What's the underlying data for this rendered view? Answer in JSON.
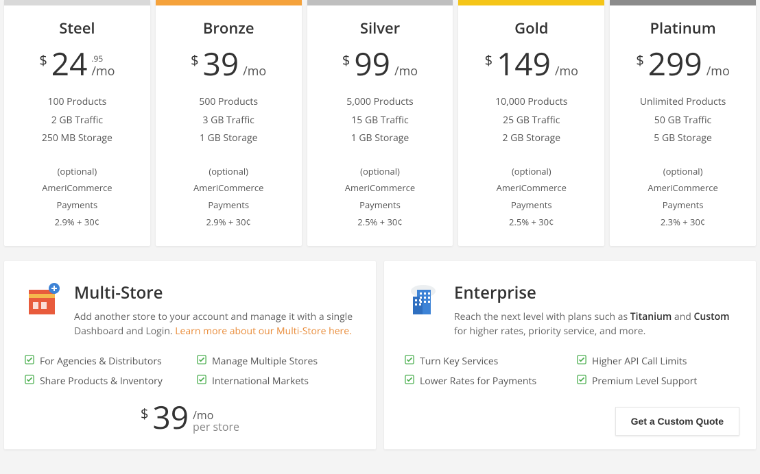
{
  "plans": [
    {
      "bar": "#d9d9d9",
      "name": "Steel",
      "currency": "$",
      "amount": "24",
      "cents": ".95",
      "per": "/mo",
      "features": [
        "100 Products",
        "2 GB Traffic",
        "250 MB Storage"
      ],
      "extra": [
        "(optional)",
        "AmeriCommerce",
        "Payments",
        "2.9% + 30¢"
      ]
    },
    {
      "bar": "#f5a23b",
      "name": "Bronze",
      "currency": "$",
      "amount": "39",
      "cents": "",
      "per": "/mo",
      "features": [
        "500 Products",
        "3 GB Traffic",
        "1 GB Storage"
      ],
      "extra": [
        "(optional)",
        "AmeriCommerce",
        "Payments",
        "2.9% + 30¢"
      ]
    },
    {
      "bar": "#bfbfbf",
      "name": "Silver",
      "currency": "$",
      "amount": "99",
      "cents": "",
      "per": "/mo",
      "features": [
        "5,000 Products",
        "15 GB Traffic",
        "1 GB Storage"
      ],
      "extra": [
        "(optional)",
        "AmeriCommerce",
        "Payments",
        "2.5% + 30¢"
      ]
    },
    {
      "bar": "#f5c518",
      "name": "Gold",
      "currency": "$",
      "amount": "149",
      "cents": "",
      "per": "/mo",
      "features": [
        "10,000 Products",
        "25 GB Traffic",
        "2 GB Storage"
      ],
      "extra": [
        "(optional)",
        "AmeriCommerce",
        "Payments",
        "2.5% + 30¢"
      ]
    },
    {
      "bar": "#8c8c8c",
      "name": "Platinum",
      "currency": "$",
      "amount": "299",
      "cents": "",
      "per": "/mo",
      "features": [
        "Unlimited Products",
        "50 GB Traffic",
        "5 GB Storage"
      ],
      "extra": [
        "(optional)",
        "AmeriCommerce",
        "Payments",
        "2.3% + 30¢"
      ]
    }
  ],
  "multistore": {
    "title": "Multi-Store",
    "desc_pre": "Add another store to your account and manage it with a single Dashboard and Login. ",
    "desc_link": "Learn more about our Multi-Store here.",
    "checks": [
      "For Agencies & Distributors",
      "Manage Multiple Stores",
      "Share Products & Inventory",
      "International Markets"
    ],
    "price_currency": "$",
    "price_amount": "39",
    "price_per": "/mo",
    "price_sub": "per store"
  },
  "enterprise": {
    "title": "Enterprise",
    "desc_pre": "Reach the next level with plans such as ",
    "desc_strong1": "Titanium",
    "desc_mid": " and ",
    "desc_strong2": "Custom",
    "desc_post": " for higher rates, priority service, and more.",
    "checks": [
      "Turn Key Services",
      "Higher API Call Limits",
      "Lower Rates for Payments",
      "Premium Level Support"
    ],
    "cta": "Get a Custom Quote"
  }
}
